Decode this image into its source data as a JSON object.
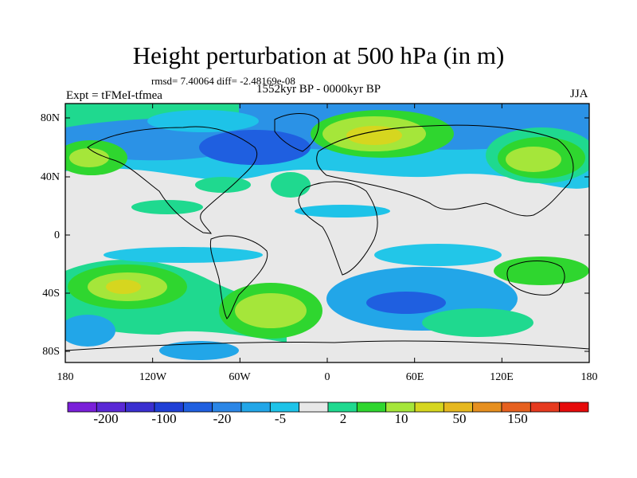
{
  "title": "Height perturbation at 500 hPa (in m)",
  "stats": "rmsd= 7.40064 diff= -2.48169e-08",
  "experiment": "Expt = tFMeI-tfmea",
  "period": "1552kyr BP - 0000kyr BP",
  "season": "JJA",
  "lat_ticks": [
    "80N",
    "40N",
    "0",
    "40S",
    "80S"
  ],
  "lon_ticks": [
    "180",
    "120W",
    "60W",
    "0",
    "60E",
    "120E",
    "180"
  ],
  "colorbar": {
    "colors": [
      "#7a1fd9",
      "#5a28d6",
      "#3a2fd0",
      "#1f3fd6",
      "#1f5fe0",
      "#2b86e6",
      "#22a6e8",
      "#1ec3e8",
      "#e8e8e8",
      "#1fd98f",
      "#2fd62f",
      "#a5e63a",
      "#d6d61f",
      "#e6b81f",
      "#e68f1f",
      "#e6601f",
      "#e63a1f",
      "#e60a0a"
    ],
    "labels": [
      "-200",
      "-100",
      "-20",
      "-5",
      "2",
      "10",
      "50",
      "150"
    ]
  }
}
